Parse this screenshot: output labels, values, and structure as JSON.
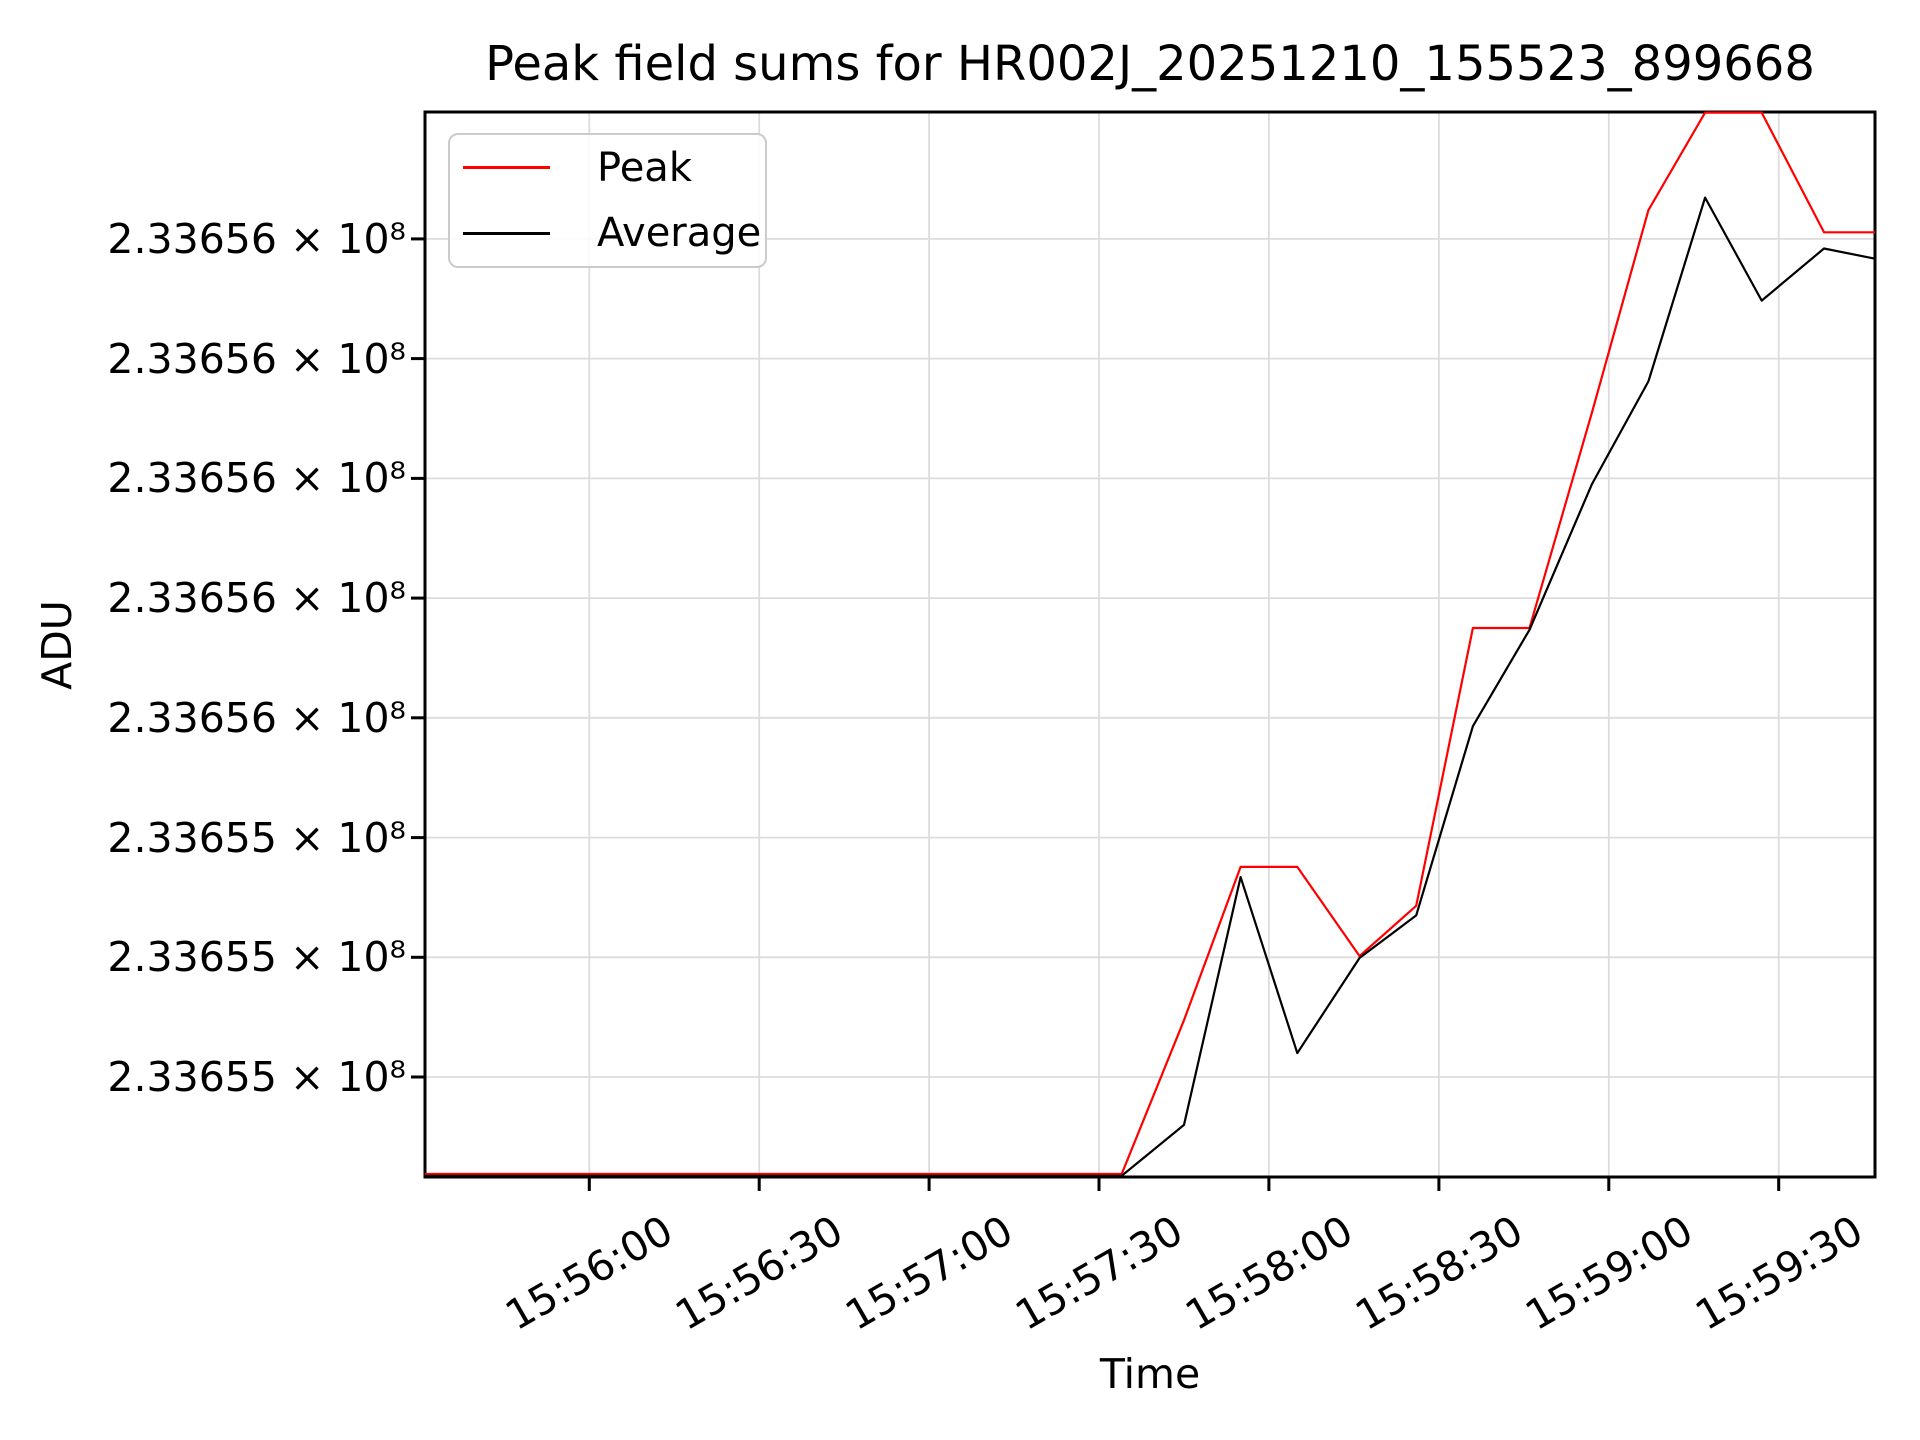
{
  "figure": {
    "background_color": "#ffffff"
  },
  "chart_data": {
    "type": "line",
    "title": "Peak field sums for HR002J_20251210_155523_899668",
    "xlabel": "Time",
    "ylabel": "ADU",
    "grid": true,
    "legend_position": "upper-left",
    "legend": [
      {
        "label": "Peak",
        "color": "#ff0000"
      },
      {
        "label": "Average",
        "color": "#000000"
      }
    ],
    "x": [
      "15:55:31",
      "15:55:41",
      "15:55:51",
      "15:56:02",
      "15:56:12",
      "15:56:22",
      "15:56:32",
      "15:56:43",
      "15:56:53",
      "15:57:03",
      "15:57:14",
      "15:57:24",
      "15:57:34",
      "15:57:45",
      "15:57:55",
      "15:58:05",
      "15:58:16",
      "15:58:26",
      "15:58:36",
      "15:58:46",
      "15:58:57",
      "15:59:07",
      "15:59:17",
      "15:59:27",
      "15:59:38",
      "15:59:47"
    ],
    "series": [
      {
        "name": "Peak",
        "color": "#ff0000",
        "values": [
          233654838,
          233654838,
          233654838,
          233654838,
          233654838,
          233654838,
          233654838,
          233654838,
          233654838,
          233654838,
          233654838,
          233654838,
          233654838,
          233655095,
          233655351,
          233655351,
          233655202,
          233655286,
          233655750,
          233655750,
          233656109,
          233656448,
          233656611,
          233656611,
          233656411,
          233656411
        ]
      },
      {
        "name": "Average",
        "color": "#000000",
        "values": [
          233654835,
          233654835,
          233654835,
          233654835,
          233654835,
          233654835,
          233654835,
          233654835,
          233654835,
          233654835,
          233654835,
          233654835,
          233654835,
          233654920,
          233655334,
          233655040,
          233655199,
          233655270,
          233655586,
          233655747,
          233655990,
          233656162,
          233656469,
          233656297,
          233656384,
          233656367
        ]
      }
    ],
    "x_ticks": [
      "15:56:00",
      "15:56:30",
      "15:57:00",
      "15:57:30",
      "15:58:00",
      "15:58:30",
      "15:59:00",
      "15:59:30"
    ],
    "x_tick_rotation_deg": 30,
    "y_ticks": [
      {
        "value": 233655000,
        "label": "2.33655 × 10⁸"
      },
      {
        "value": 233655200,
        "label": "2.33655 × 10⁸"
      },
      {
        "value": 233655400,
        "label": "2.33655 × 10⁸"
      },
      {
        "value": 233655600,
        "label": "2.33656 × 10⁸"
      },
      {
        "value": 233655800,
        "label": "2.33656 × 10⁸"
      },
      {
        "value": 233656000,
        "label": "2.33656 × 10⁸"
      },
      {
        "value": 233656200,
        "label": "2.33656 × 10⁸"
      },
      {
        "value": 233656400,
        "label": "2.33656 × 10⁸"
      }
    ],
    "x_range": [
      "15:55:31",
      "15:59:47"
    ],
    "y_range": [
      233654833,
      233656612
    ],
    "colors": {
      "grid": "#dcdcdc",
      "axis": "#000000",
      "text": "#000000"
    }
  }
}
